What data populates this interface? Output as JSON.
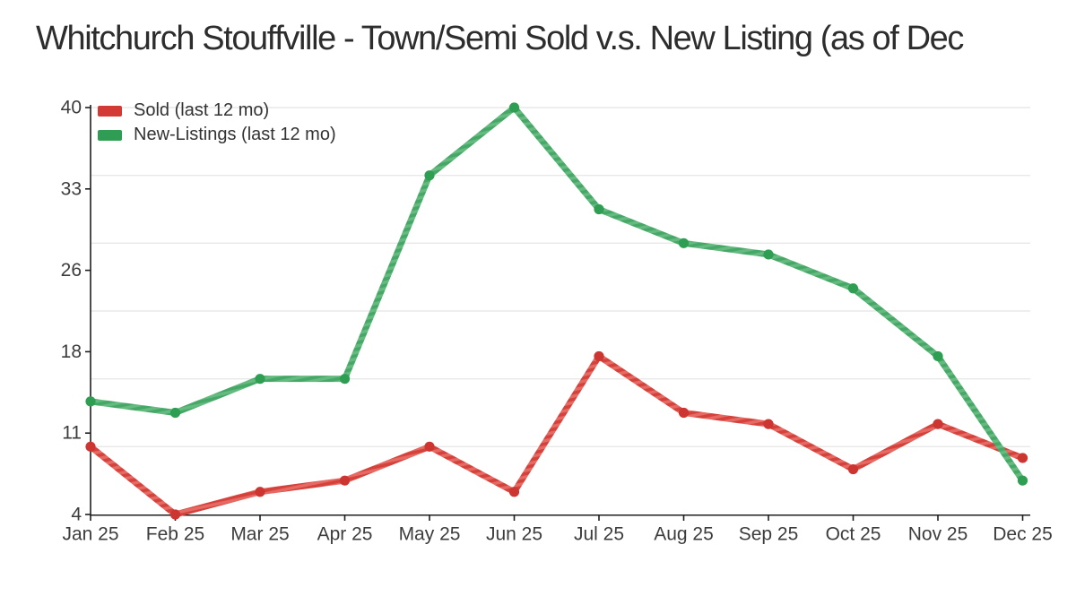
{
  "title": "Whitchurch Stouffville - Town/Semi Sold v.s. New Listing (as of Dec",
  "legend": {
    "items": [
      {
        "label": "Sold (last 12 mo)",
        "swatch_color": "#d43a35"
      },
      {
        "label": "New-Listings (last 12 mo)",
        "swatch_color": "#2f9e54"
      }
    ]
  },
  "colors": {
    "axis": "#1f1f1f",
    "gridline": "#e8e8e8",
    "tick_text": "#3c3c3c",
    "title_text": "#2d2d2d"
  },
  "chart_data": {
    "type": "line",
    "title": "Whitchurch Stouffville - Town/Semi Sold v.s. New Listing (as of Dec",
    "categories": [
      "Jan 25",
      "Feb 25",
      "Mar 25",
      "Apr 25",
      "May 25",
      "Jun 25",
      "Jul 25",
      "Aug 25",
      "Sep 25",
      "Oct 25",
      "Nov 25",
      "Dec 25"
    ],
    "series": [
      {
        "name": "Sold (last 12 mo)",
        "slug": "sold",
        "values": [
          10,
          4,
          6,
          7,
          10,
          6,
          18,
          13,
          12,
          8,
          12,
          9
        ],
        "color": "#d43a35",
        "stripe_light": "#e66a63",
        "stripe_dark": "#d5423c",
        "marker_color": "#cd3531"
      },
      {
        "name": "New-Listings (last 12 mo)",
        "slug": "new-listings",
        "values": [
          14,
          13,
          16,
          16,
          34,
          40,
          31,
          28,
          27,
          24,
          18,
          7
        ],
        "color": "#2f9e54",
        "stripe_light": "#65ba80",
        "stripe_dark": "#46a867",
        "marker_color": "#2d9e52"
      }
    ],
    "xlabel": "",
    "ylabel": "",
    "ylim": [
      4,
      40
    ],
    "ytick_labels": [
      "40",
      "33",
      "26",
      "18",
      "11",
      "4"
    ],
    "gridline_values": [
      40,
      34,
      28,
      22,
      16,
      10
    ],
    "grid": "horizontal",
    "legend_position": "top-left"
  }
}
